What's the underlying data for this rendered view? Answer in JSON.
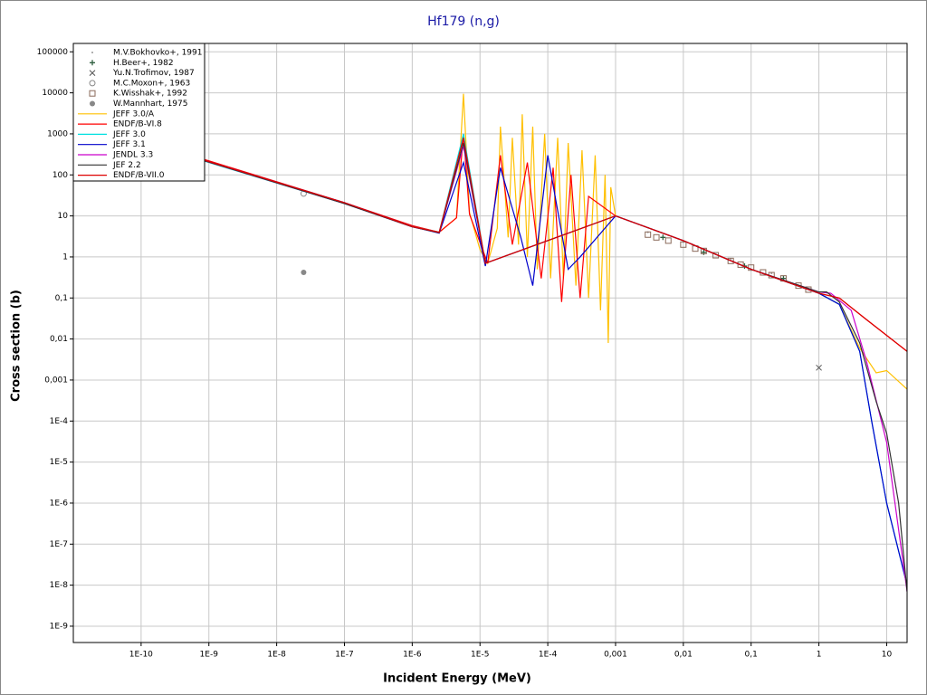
{
  "chart_data": {
    "type": "line",
    "title": "Hf179 (n,g)",
    "xlabel": "Incident Energy (MeV)",
    "ylabel": "Cross section (b)",
    "xscale": "log",
    "yscale": "log",
    "grid": true,
    "legend": "upper left",
    "xlim": [
      1e-11,
      20
    ],
    "ylim": [
      4e-10,
      160000
    ],
    "xticks": [
      {
        "value": 1e-10,
        "label": "1E-10"
      },
      {
        "value": 1e-09,
        "label": "1E-9"
      },
      {
        "value": 1e-08,
        "label": "1E-8"
      },
      {
        "value": 1e-07,
        "label": "1E-7"
      },
      {
        "value": 1e-06,
        "label": "1E-6"
      },
      {
        "value": 1e-05,
        "label": "1E-5"
      },
      {
        "value": 0.0001,
        "label": "1E-4"
      },
      {
        "value": 0.001,
        "label": "0,001"
      },
      {
        "value": 0.01,
        "label": "0,01"
      },
      {
        "value": 0.1,
        "label": "0,1"
      },
      1,
      10
    ],
    "yticks": [
      100000,
      10000,
      1000,
      100,
      10,
      1,
      {
        "value": 0.1,
        "label": "0,1"
      },
      {
        "value": 0.01,
        "label": "0,01"
      },
      {
        "value": 0.001,
        "label": "0,001"
      },
      {
        "value": 0.0001,
        "label": "1E-4"
      },
      {
        "value": 1e-05,
        "label": "1E-5"
      },
      {
        "value": 1e-06,
        "label": "1E-6"
      },
      {
        "value": 1e-07,
        "label": "1E-7"
      },
      {
        "value": 1e-08,
        "label": "1E-8"
      },
      {
        "value": 1e-09,
        "label": "1E-9"
      }
    ],
    "series": [
      {
        "name": "M.V.Bokhovko+, 1991",
        "marker": "point",
        "color": "#999999",
        "x": [
          0.003,
          0.01,
          0.05,
          0.2
        ],
        "values": [
          4,
          2.3,
          0.9,
          0.4
        ]
      },
      {
        "name": "H.Beer+, 1982",
        "marker": "plus",
        "color": "#2f5f3f",
        "x": [
          0.005,
          0.02,
          0.08,
          0.3
        ],
        "values": [
          3,
          1.3,
          0.6,
          0.3
        ]
      },
      {
        "name": "Yu.N.Trofimov, 1987",
        "marker": "cross",
        "color": "#555555",
        "x": [
          1
        ],
        "values": [
          0.002
        ]
      },
      {
        "name": "M.C.Moxon+, 1963",
        "marker": "circle",
        "color": "#888888",
        "x": [
          2.5e-08
        ],
        "values": [
          35
        ]
      },
      {
        "name": "K.Wisshak+, 1992",
        "marker": "square",
        "color": "#8a6a5a",
        "x": [
          0.003,
          0.004,
          0.006,
          0.01,
          0.015,
          0.02,
          0.03,
          0.05,
          0.07,
          0.1,
          0.15,
          0.2,
          0.3,
          0.5,
          0.7
        ],
        "values": [
          3.5,
          3,
          2.5,
          2,
          1.6,
          1.4,
          1.1,
          0.8,
          0.65,
          0.55,
          0.42,
          0.36,
          0.3,
          0.2,
          0.16
        ]
      },
      {
        "name": "W.Mannhart, 1975",
        "marker": "dot",
        "color": "#888888",
        "x": [
          2.5e-08
        ],
        "values": [
          0.42
        ]
      },
      {
        "name": "JEFF 3.0/A",
        "marker": "line",
        "color": "#ffc000",
        "x": [
          1e-11,
          1e-09,
          1e-08,
          1e-07,
          1e-06,
          2.5e-06,
          4.5e-06,
          5.7e-06,
          7e-06,
          1e-05,
          1.3e-05,
          1.8e-05,
          2e-05,
          2.6e-05,
          3e-05,
          3.7e-05,
          4.2e-05,
          5e-05,
          6e-05,
          7e-05,
          9e-05,
          0.00011,
          0.00014,
          0.00017,
          0.0002,
          0.00026,
          0.00032,
          0.0004,
          0.0005,
          0.0006,
          0.0007,
          0.00078,
          0.00085,
          0.001,
          0.01,
          0.1,
          1,
          2,
          4,
          7,
          10,
          20
        ],
        "values": [
          2100,
          210,
          65,
          20,
          5.5,
          4,
          9,
          9500,
          12,
          1.5,
          0.7,
          5,
          1500,
          3,
          800,
          2,
          3000,
          1,
          1500,
          0.5,
          1000,
          0.3,
          800,
          0.3,
          600,
          0.2,
          400,
          0.1,
          300,
          0.05,
          100,
          0.008,
          50,
          10,
          2.5,
          0.5,
          0.13,
          0.07,
          0.006,
          0.0015,
          0.0017,
          0.0006
        ]
      },
      {
        "name": "ENDF/B-VI.8",
        "marker": "line",
        "color": "#ff0000",
        "x": [
          1e-11,
          1e-09,
          1e-08,
          1e-07,
          1e-06,
          2.5e-06,
          4.5e-06,
          5.7e-06,
          7e-06,
          1.3e-05,
          2e-05,
          3e-05,
          5e-05,
          8e-05,
          0.00012,
          0.00016,
          0.00022,
          0.0003,
          0.0004,
          0.001,
          0.01,
          0.1,
          1,
          2,
          5,
          20
        ],
        "values": [
          2100,
          220,
          68,
          21,
          5.8,
          4,
          9,
          1000,
          11,
          0.7,
          300,
          2,
          200,
          0.3,
          150,
          0.08,
          100,
          0.1,
          30,
          10,
          2.5,
          0.5,
          0.13,
          0.1,
          0.03,
          0.005
        ]
      },
      {
        "name": "JEFF 3.0",
        "marker": "line",
        "color": "#00e0e0",
        "x": [
          1e-11,
          1e-09,
          1e-07,
          1e-06,
          2.5e-06,
          5.7e-06,
          1.2e-05,
          0.001,
          0.01,
          0.1,
          1,
          2,
          4,
          6,
          10,
          20
        ],
        "values": [
          2000,
          200,
          20,
          5.5,
          4,
          1000,
          0.7,
          10,
          2.5,
          0.5,
          0.13,
          0.07,
          0.005,
          0.0001,
          1e-06,
          1e-08
        ]
      },
      {
        "name": "JEFF 3.1",
        "marker": "line",
        "color": "#0000cc",
        "x": [
          1e-11,
          1e-09,
          1e-07,
          1e-06,
          2.5e-06,
          5.7e-06,
          1.2e-05,
          2e-05,
          4e-05,
          6e-05,
          0.0001,
          0.0002,
          0.0003,
          0.001,
          0.01,
          0.1,
          1,
          2,
          4,
          6,
          10,
          20
        ],
        "values": [
          2100,
          210,
          21,
          5.5,
          3.8,
          200,
          0.6,
          150,
          3,
          0.2,
          300,
          0.5,
          1,
          10,
          2.5,
          0.5,
          0.13,
          0.07,
          0.005,
          0.0001,
          1e-06,
          1e-08
        ]
      },
      {
        "name": "JENDL 3.3",
        "marker": "line",
        "color": "#cc00cc",
        "x": [
          1e-11,
          1e-09,
          1e-07,
          1e-06,
          2.5e-06,
          5.7e-06,
          1.2e-05,
          0.001,
          0.01,
          0.1,
          1,
          1.5,
          3,
          5,
          10,
          20
        ],
        "values": [
          2050,
          205,
          20,
          5.4,
          3.9,
          500,
          0.7,
          10,
          2.5,
          0.5,
          0.14,
          0.13,
          0.05,
          0.003,
          3e-05,
          7e-09
        ]
      },
      {
        "name": "JEF 2.2",
        "marker": "line",
        "color": "#333333",
        "x": [
          1e-11,
          1e-09,
          1e-07,
          1e-06,
          2.5e-06,
          5.7e-06,
          1.2e-05,
          0.001,
          0.01,
          0.1,
          1,
          1.3,
          2,
          4,
          7,
          10,
          15,
          20
        ],
        "values": [
          2050,
          205,
          20,
          5.4,
          3.9,
          600,
          0.7,
          10,
          2.5,
          0.5,
          0.14,
          0.14,
          0.08,
          0.008,
          0.0003,
          5e-05,
          1e-06,
          7e-09
        ]
      },
      {
        "name": "ENDF/B-VII.0",
        "marker": "line",
        "color": "#dd0000",
        "x": [
          1e-11,
          1e-09,
          1e-07,
          1e-06,
          2.5e-06,
          5.7e-06,
          1.2e-05,
          0.001,
          0.01,
          0.1,
          1,
          2,
          5,
          20
        ],
        "values": [
          2100,
          210,
          21,
          5.5,
          4,
          800,
          0.7,
          10,
          2.5,
          0.5,
          0.13,
          0.1,
          0.03,
          0.005
        ]
      }
    ]
  }
}
